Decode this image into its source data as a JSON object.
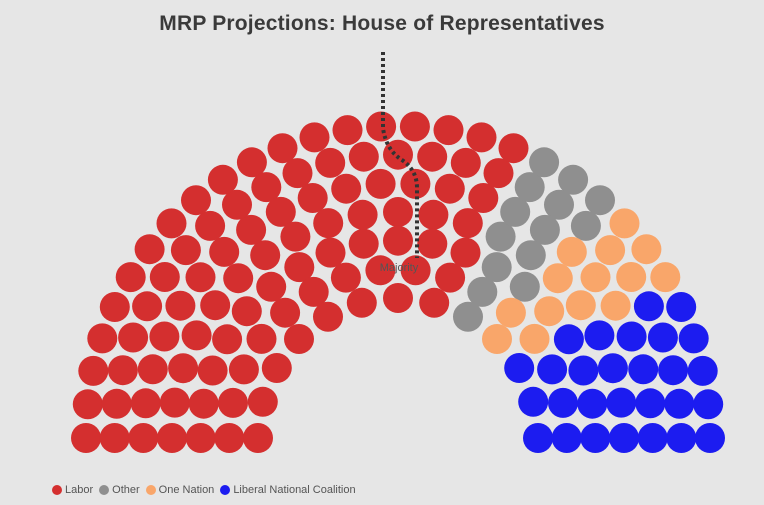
{
  "title": "MRP Projections: House of Representatives",
  "majority_label": "Majority",
  "chart_data": {
    "type": "parliament",
    "title": "MRP Projections: House of Representatives",
    "series": [
      {
        "name": "Labor",
        "seats": 94,
        "color": "#d42f2f"
      },
      {
        "name": "Other",
        "seats": 14,
        "color": "#8f8f8f"
      },
      {
        "name": "One Nation",
        "seats": 14,
        "color": "#f9a66a"
      },
      {
        "name": "Liberal National Coalition",
        "seats": 28,
        "color": "#1c1cf0"
      }
    ],
    "total_seats": 150,
    "majority_line": "Majority",
    "legend": "bottom-left"
  }
}
